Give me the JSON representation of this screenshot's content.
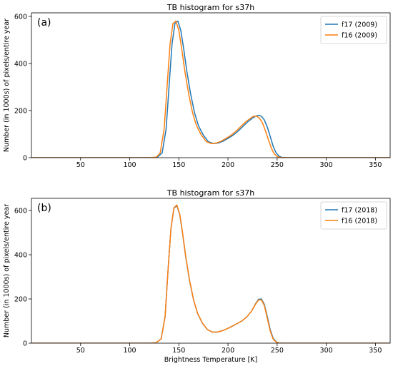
{
  "colors": {
    "f17": "#1f77b4",
    "f16": "#ff7f0e"
  },
  "chart_data": [
    {
      "type": "line",
      "panel_label": "(a)",
      "title": "TB histogram for s37h",
      "xlabel": "",
      "ylabel": "Number (in 1000s) of pixels/entire year",
      "xlim": [
        0,
        365
      ],
      "ylim": [
        0,
        615
      ],
      "xticks": [
        50,
        100,
        150,
        200,
        250,
        300,
        350
      ],
      "yticks": [
        0,
        200,
        400,
        600
      ],
      "legend_position": "top-right",
      "series": [
        {
          "name": "f17 (2009)",
          "color": "#1f77b4",
          "x": [
            0,
            120,
            128,
            133,
            137,
            140,
            143,
            146,
            149,
            152,
            155,
            158,
            162,
            166,
            170,
            175,
            180,
            185,
            190,
            195,
            200,
            205,
            210,
            215,
            220,
            225,
            228,
            231,
            234,
            237,
            240,
            243,
            246,
            249,
            252,
            255,
            260,
            365
          ],
          "y": [
            0,
            0,
            2,
            20,
            120,
            300,
            480,
            570,
            580,
            540,
            460,
            370,
            270,
            190,
            135,
            95,
            68,
            60,
            62,
            70,
            82,
            95,
            112,
            132,
            152,
            168,
            176,
            180,
            176,
            160,
            130,
            90,
            48,
            20,
            6,
            1,
            0,
            0
          ]
        },
        {
          "name": "f16 (2009)",
          "color": "#ff7f0e",
          "x": [
            0,
            120,
            127,
            131,
            135,
            138,
            141,
            144,
            147,
            150,
            153,
            156,
            160,
            164,
            168,
            173,
            178,
            183,
            188,
            193,
            198,
            203,
            208,
            213,
            218,
            223,
            226,
            229,
            232,
            235,
            238,
            241,
            244,
            247,
            250,
            253,
            258,
            365
          ],
          "y": [
            0,
            0,
            2,
            20,
            120,
            300,
            480,
            570,
            580,
            540,
            460,
            370,
            270,
            190,
            135,
            95,
            68,
            60,
            62,
            70,
            82,
            95,
            112,
            132,
            152,
            168,
            176,
            176,
            168,
            148,
            115,
            78,
            42,
            16,
            5,
            1,
            0,
            0
          ]
        }
      ]
    },
    {
      "type": "line",
      "panel_label": "(b)",
      "title": "TB histogram for s37h",
      "xlabel": "Brightness Temperature [K]",
      "ylabel": "Number (in 1000s) of pixels/entire year",
      "xlim": [
        0,
        365
      ],
      "ylim": [
        0,
        655
      ],
      "xticks": [
        50,
        100,
        150,
        200,
        250,
        300,
        350
      ],
      "yticks": [
        0,
        200,
        400,
        600
      ],
      "legend_position": "top-right",
      "series": [
        {
          "name": "f17 (2018)",
          "color": "#1f77b4",
          "x": [
            0,
            120,
            127,
            132,
            136,
            139,
            142,
            145,
            148,
            151,
            154,
            157,
            161,
            165,
            169,
            174,
            179,
            184,
            189,
            194,
            199,
            204,
            209,
            214,
            219,
            224,
            228,
            231,
            234,
            237,
            240,
            243,
            246,
            249,
            252,
            257,
            365
          ],
          "y": [
            0,
            0,
            2,
            20,
            120,
            330,
            520,
            610,
            622,
            580,
            490,
            390,
            280,
            195,
            135,
            90,
            62,
            50,
            50,
            56,
            65,
            76,
            88,
            100,
            118,
            145,
            178,
            198,
            200,
            175,
            120,
            60,
            22,
            6,
            1,
            0,
            0
          ]
        },
        {
          "name": "f16 (2018)",
          "color": "#ff7f0e",
          "x": [
            0,
            120,
            127,
            132,
            136,
            139,
            142,
            145,
            148,
            151,
            154,
            157,
            161,
            165,
            169,
            174,
            179,
            184,
            189,
            194,
            199,
            204,
            209,
            214,
            219,
            224,
            228,
            231,
            234,
            237,
            240,
            243,
            246,
            249,
            252,
            257,
            365
          ],
          "y": [
            0,
            0,
            2,
            20,
            120,
            330,
            520,
            612,
            625,
            582,
            492,
            392,
            282,
            196,
            136,
            90,
            62,
            50,
            50,
            56,
            65,
            76,
            88,
            100,
            118,
            145,
            176,
            195,
            196,
            170,
            112,
            54,
            18,
            5,
            1,
            0,
            0
          ]
        }
      ]
    }
  ]
}
